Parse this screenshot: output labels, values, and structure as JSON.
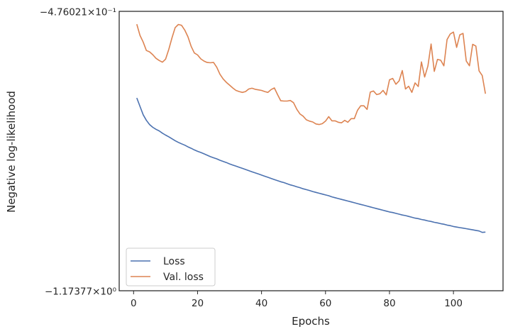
{
  "chart_data": {
    "type": "line",
    "xlabel": "Epochs",
    "ylabel": "Negative log-likelihood",
    "xlim": [
      -4.5,
      115.5
    ],
    "xticks": [
      0,
      20,
      40,
      60,
      80,
      100
    ],
    "ylim_labels": {
      "top": "−4.76021×10⁻¹",
      "bottom": "−1.17377×10⁰"
    },
    "yscale": "symlog",
    "grid": false,
    "legend_placement": "lower-left",
    "series": [
      {
        "name": "Loss",
        "color": "#4c72b0",
        "x": [
          1,
          2,
          3,
          4,
          5,
          6,
          7,
          8,
          9,
          10,
          11,
          12,
          13,
          14,
          15,
          16,
          17,
          18,
          19,
          20,
          21,
          22,
          23,
          24,
          25,
          26,
          27,
          28,
          29,
          30,
          31,
          32,
          33,
          34,
          35,
          36,
          37,
          38,
          39,
          40,
          41,
          42,
          43,
          44,
          45,
          46,
          47,
          48,
          49,
          50,
          51,
          52,
          53,
          54,
          55,
          56,
          57,
          58,
          59,
          60,
          61,
          62,
          63,
          64,
          65,
          66,
          67,
          68,
          69,
          70,
          71,
          72,
          73,
          74,
          75,
          76,
          77,
          78,
          79,
          80,
          81,
          82,
          83,
          84,
          85,
          86,
          87,
          88,
          89,
          90,
          91,
          92,
          93,
          94,
          95,
          96,
          97,
          98,
          99,
          100,
          101,
          102,
          103,
          104,
          105,
          106,
          107,
          108,
          109,
          110
        ],
        "values_norm": [
          0.31,
          0.34,
          0.37,
          0.39,
          0.405,
          0.415,
          0.422,
          0.428,
          0.436,
          0.443,
          0.449,
          0.456,
          0.463,
          0.469,
          0.474,
          0.479,
          0.485,
          0.49,
          0.496,
          0.501,
          0.505,
          0.51,
          0.515,
          0.52,
          0.524,
          0.528,
          0.533,
          0.537,
          0.541,
          0.546,
          0.55,
          0.554,
          0.558,
          0.562,
          0.566,
          0.57,
          0.574,
          0.578,
          0.582,
          0.586,
          0.59,
          0.594,
          0.598,
          0.602,
          0.606,
          0.61,
          0.613,
          0.617,
          0.621,
          0.624,
          0.628,
          0.631,
          0.635,
          0.638,
          0.641,
          0.645,
          0.648,
          0.651,
          0.654,
          0.657,
          0.66,
          0.664,
          0.667,
          0.67,
          0.673,
          0.676,
          0.679,
          0.682,
          0.685,
          0.688,
          0.691,
          0.694,
          0.697,
          0.7,
          0.703,
          0.706,
          0.709,
          0.712,
          0.715,
          0.718,
          0.72,
          0.723,
          0.726,
          0.729,
          0.731,
          0.734,
          0.737,
          0.74,
          0.742,
          0.745,
          0.747,
          0.75,
          0.752,
          0.755,
          0.757,
          0.76,
          0.762,
          0.765,
          0.767,
          0.77,
          0.772,
          0.774,
          0.776,
          0.778,
          0.78,
          0.782,
          0.784,
          0.786,
          0.791,
          0.79
        ]
      },
      {
        "name": "Val. loss",
        "color": "#dd8452",
        "x": [
          1,
          2,
          3,
          4,
          5,
          6,
          7,
          8,
          9,
          10,
          11,
          12,
          13,
          14,
          15,
          16,
          17,
          18,
          19,
          20,
          21,
          22,
          23,
          24,
          25,
          26,
          27,
          28,
          29,
          30,
          31,
          32,
          33,
          34,
          35,
          36,
          37,
          38,
          39,
          40,
          41,
          42,
          43,
          44,
          45,
          46,
          47,
          48,
          49,
          50,
          51,
          52,
          53,
          54,
          55,
          56,
          57,
          58,
          59,
          60,
          61,
          62,
          63,
          64,
          65,
          66,
          67,
          68,
          69,
          70,
          71,
          72,
          73,
          74,
          75,
          76,
          77,
          78,
          79,
          80,
          81,
          82,
          83,
          84,
          85,
          86,
          87,
          88,
          89,
          90,
          91,
          92,
          93,
          94,
          95,
          96,
          97,
          98,
          99,
          100,
          101,
          102,
          103,
          104,
          105,
          106,
          107,
          108,
          109,
          110
        ],
        "values_norm": [
          0.046,
          0.086,
          0.11,
          0.14,
          0.145,
          0.155,
          0.168,
          0.176,
          0.182,
          0.171,
          0.136,
          0.095,
          0.058,
          0.047,
          0.05,
          0.067,
          0.091,
          0.125,
          0.149,
          0.156,
          0.17,
          0.178,
          0.183,
          0.184,
          0.183,
          0.2,
          0.225,
          0.242,
          0.254,
          0.264,
          0.274,
          0.283,
          0.287,
          0.29,
          0.287,
          0.278,
          0.275,
          0.279,
          0.281,
          0.283,
          0.287,
          0.29,
          0.28,
          0.274,
          0.298,
          0.32,
          0.321,
          0.321,
          0.319,
          0.327,
          0.35,
          0.367,
          0.375,
          0.388,
          0.393,
          0.396,
          0.403,
          0.405,
          0.402,
          0.393,
          0.377,
          0.392,
          0.392,
          0.397,
          0.399,
          0.39,
          0.397,
          0.384,
          0.384,
          0.354,
          0.338,
          0.338,
          0.351,
          0.289,
          0.285,
          0.298,
          0.295,
          0.283,
          0.299,
          0.245,
          0.24,
          0.261,
          0.249,
          0.212,
          0.278,
          0.268,
          0.29,
          0.256,
          0.269,
          0.181,
          0.235,
          0.196,
          0.117,
          0.215,
          0.172,
          0.175,
          0.195,
          0.101,
          0.081,
          0.074,
          0.129,
          0.084,
          0.079,
          0.178,
          0.195,
          0.118,
          0.124,
          0.213,
          0.23,
          0.295
        ]
      }
    ]
  }
}
